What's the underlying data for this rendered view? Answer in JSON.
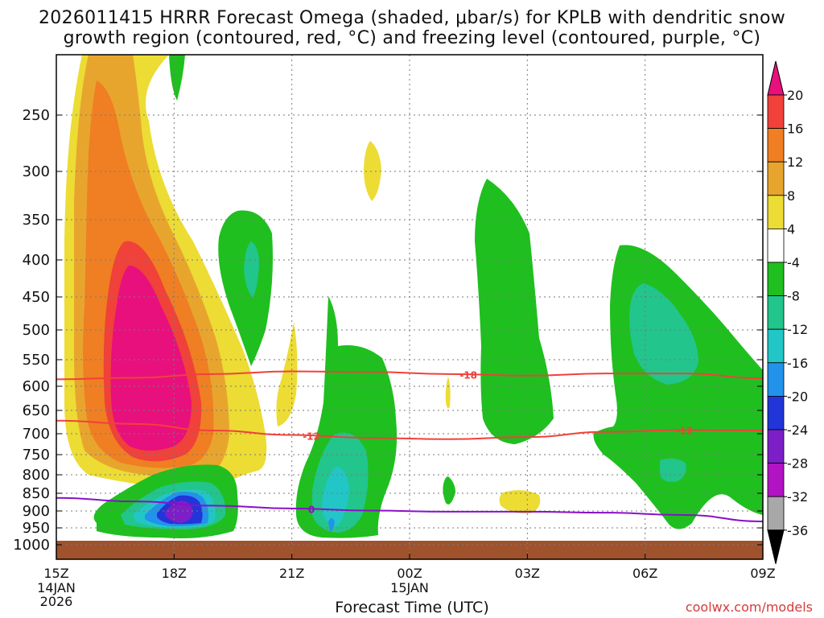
{
  "chart_data": {
    "type": "contour-cross-section",
    "title_line1": "2026011415 HRRR Forecast Omega (shaded, μbar/s) for KPLB with dendritic snow",
    "title_line2": "growth region (contoured, red, °C) and freezing level (contoured, purple, °C)",
    "xlabel": "Forecast Time (UTC)",
    "credit": "coolwx.com/models",
    "x_ticks": [
      {
        "hour": 0,
        "label": "15Z",
        "sub": [
          "14JAN",
          "2026"
        ]
      },
      {
        "hour": 3,
        "label": "18Z",
        "sub": []
      },
      {
        "hour": 6,
        "label": "21Z",
        "sub": []
      },
      {
        "hour": 9,
        "label": "00Z",
        "sub": [
          "15JAN"
        ]
      },
      {
        "hour": 12,
        "label": "03Z",
        "sub": []
      },
      {
        "hour": 15,
        "label": "06Z",
        "sub": []
      },
      {
        "hour": 18,
        "label": "09Z",
        "sub": []
      }
    ],
    "y_ticks": [
      "250",
      "300",
      "350",
      "400",
      "450",
      "500",
      "550",
      "600",
      "650",
      "700",
      "750",
      "800",
      "850",
      "900",
      "950",
      "1000"
    ],
    "colorbar": {
      "labels": [
        "20",
        "16",
        "12",
        "8",
        "4",
        "-4",
        "-8",
        "-12",
        "-16",
        "-20",
        "-24",
        "-28",
        "-32",
        "-36"
      ],
      "colors": [
        "#e8107c",
        "#f0413a",
        "#ef7f22",
        "#e8a52e",
        "#ecdc34",
        "#ffffff",
        "#1fbf1f",
        "#22c58b",
        "#22c6c6",
        "#2392eb",
        "#2235d8",
        "#7c1fc9",
        "#b214c4",
        "#a8a8a8",
        "#000000"
      ]
    },
    "contours": [
      {
        "name": "dgz-minus-18",
        "label": "-18",
        "color": "#f0413a",
        "points": [
          [
            0,
            587
          ],
          [
            2,
            584
          ],
          [
            4,
            577
          ],
          [
            6,
            572
          ],
          [
            8,
            573
          ],
          [
            10,
            577
          ],
          [
            12,
            580
          ],
          [
            14,
            576
          ],
          [
            16,
            576
          ],
          [
            18,
            585
          ]
        ]
      },
      {
        "name": "dgz-minus-12",
        "label": "-12",
        "color": "#f0413a",
        "points": [
          [
            0,
            672
          ],
          [
            2,
            679
          ],
          [
            4,
            693
          ],
          [
            6,
            703
          ],
          [
            8,
            710
          ],
          [
            10,
            713
          ],
          [
            12,
            708
          ],
          [
            14,
            696
          ],
          [
            16,
            692
          ],
          [
            18,
            693
          ]
        ]
      },
      {
        "name": "freezing-level-0",
        "label": "0",
        "color": "#8a10c8",
        "points": [
          [
            0,
            863
          ],
          [
            2,
            873
          ],
          [
            4,
            885
          ],
          [
            6,
            893
          ],
          [
            8,
            899
          ],
          [
            10,
            902
          ],
          [
            12,
            902
          ],
          [
            14,
            905
          ],
          [
            16,
            912
          ],
          [
            18,
            931
          ]
        ]
      }
    ]
  }
}
